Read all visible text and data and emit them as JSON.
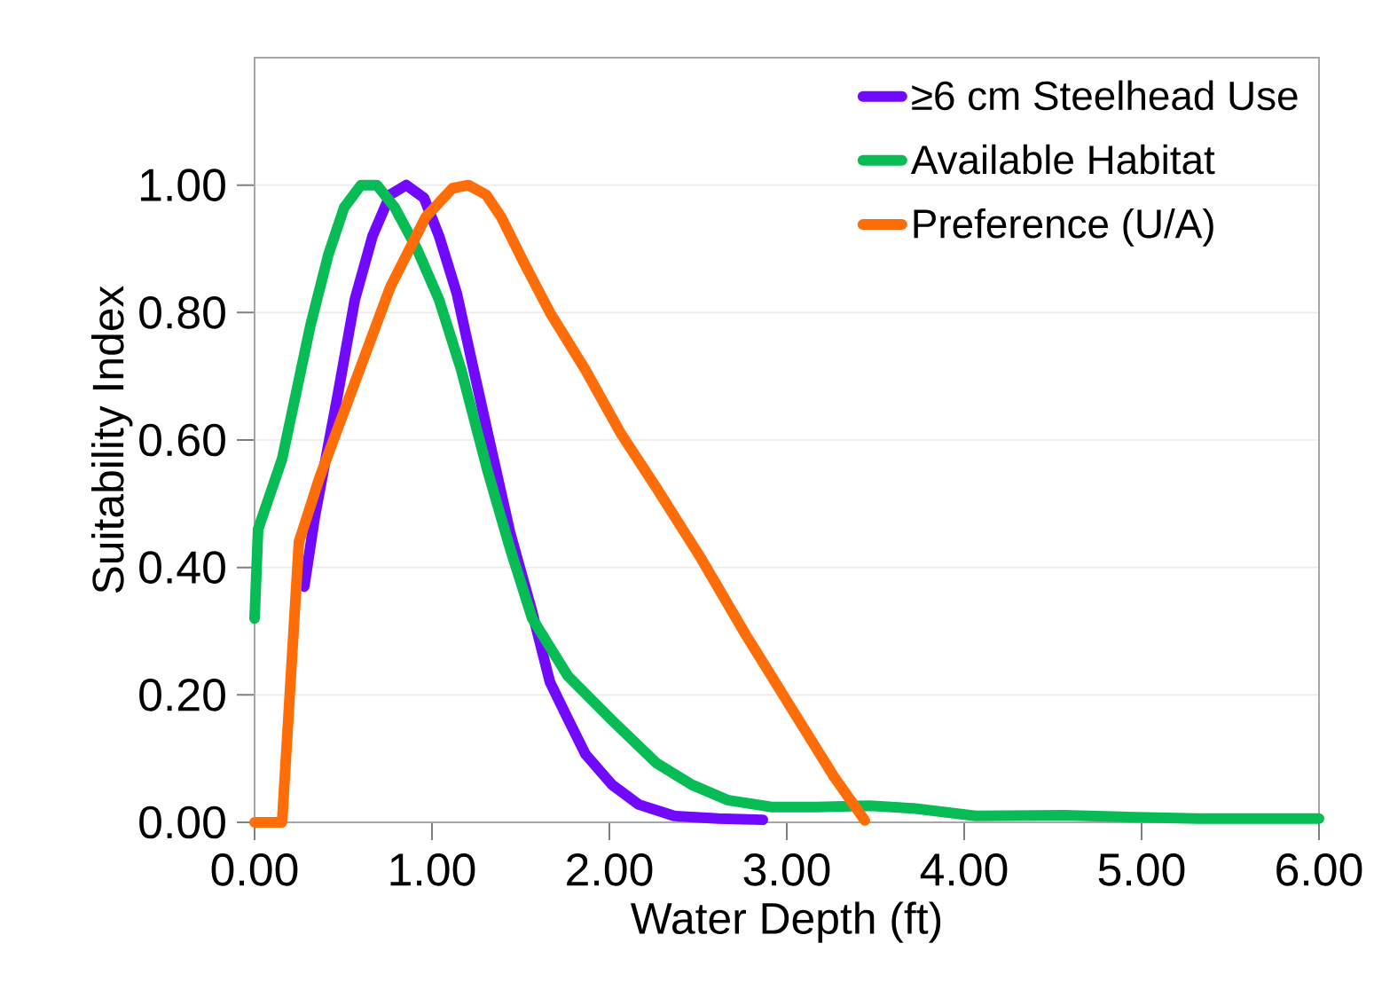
{
  "chart_data": {
    "type": "line",
    "xlabel": "Water Depth (ft)",
    "ylabel": "Suitability Index",
    "xlim": [
      0,
      6
    ],
    "xticks": [
      {
        "value": 0,
        "label": "0.00"
      },
      {
        "value": 1,
        "label": "1.00"
      },
      {
        "value": 2,
        "label": "2.00"
      },
      {
        "value": 3,
        "label": "3.00"
      },
      {
        "value": 4,
        "label": "4.00"
      },
      {
        "value": 5,
        "label": "5.00"
      },
      {
        "value": 6,
        "label": "6.00"
      }
    ],
    "ylim": [
      0,
      1.2
    ],
    "yticks": [
      {
        "value": 0,
        "label": "0.00"
      },
      {
        "value": 0.2,
        "label": "0.20"
      },
      {
        "value": 0.4,
        "label": "0.40"
      },
      {
        "value": 0.6,
        "label": "0.60"
      },
      {
        "value": 0.8,
        "label": "0.80"
      },
      {
        "value": 1,
        "label": "1.00"
      }
    ],
    "grid": "y",
    "legend": "top right",
    "marker": "none",
    "line_style": "solid",
    "series": [
      {
        "name": "≥6 cm Steelhead Use",
        "color": "#7209ff",
        "x": [
          0.28,
          0.34,
          0.465,
          0.565,
          0.665,
          0.765,
          0.855,
          0.955,
          1.04,
          1.14,
          1.215,
          1.315,
          1.44,
          1.565,
          1.665,
          1.765,
          1.865,
          2.015,
          2.165,
          2.365,
          2.615,
          2.865
        ],
        "values": [
          0.37,
          0.48,
          0.665,
          0.82,
          0.92,
          0.985,
          1.0,
          0.98,
          0.92,
          0.83,
          0.735,
          0.61,
          0.455,
          0.33,
          0.22,
          0.163,
          0.107,
          0.059,
          0.028,
          0.01,
          0.006,
          0.004
        ]
      },
      {
        "name": "Available Habitat",
        "color": "#08bc55",
        "x": [
          0.0,
          0.02,
          0.155,
          0.315,
          0.415,
          0.505,
          0.6,
          0.69,
          0.79,
          0.915,
          1.04,
          1.165,
          1.315,
          1.44,
          1.565,
          1.765,
          2.015,
          2.265,
          2.465,
          2.665,
          2.915,
          3.165,
          3.465,
          3.715,
          4.065,
          4.565,
          4.965,
          5.315,
          6.0
        ],
        "values": [
          0.32,
          0.46,
          0.57,
          0.78,
          0.89,
          0.965,
          1.0,
          1.0,
          0.965,
          0.9,
          0.82,
          0.71,
          0.55,
          0.43,
          0.32,
          0.23,
          0.16,
          0.093,
          0.059,
          0.035,
          0.024,
          0.024,
          0.026,
          0.022,
          0.01,
          0.011,
          0.008,
          0.006,
          0.006
        ]
      },
      {
        "name": "Preference (U/A)",
        "color": "#ff6d08",
        "x": [
          0.0,
          0.155,
          0.25,
          0.365,
          0.565,
          0.765,
          0.965,
          1.115,
          1.205,
          1.305,
          1.39,
          1.515,
          1.665,
          1.865,
          2.065,
          2.265,
          2.515,
          2.765,
          3.015,
          3.265,
          3.44
        ],
        "values": [
          0.0,
          0.0,
          0.44,
          0.54,
          0.69,
          0.84,
          0.95,
          0.995,
          1.0,
          0.985,
          0.95,
          0.88,
          0.8,
          0.71,
          0.61,
          0.525,
          0.415,
          0.296,
          0.184,
          0.072,
          0.003
        ]
      }
    ]
  }
}
